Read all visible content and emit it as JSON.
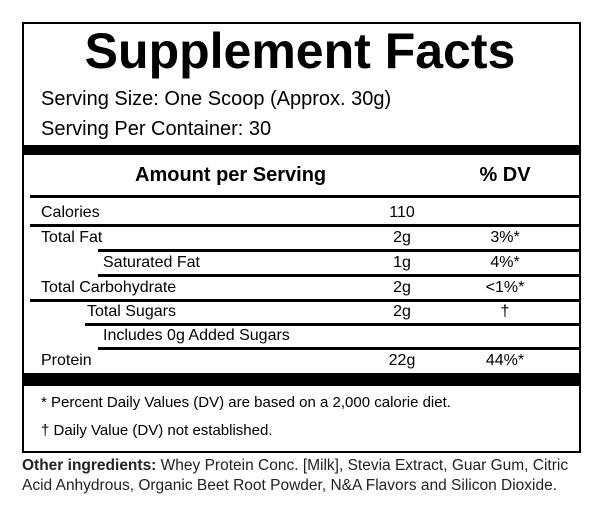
{
  "header": {
    "title": "Supplement Facts",
    "serving_size": "Serving Size:  One Scoop (Approx. 30g)",
    "servings_per_container": "Serving Per Container: 30"
  },
  "table": {
    "headers": [
      "Amount per Serving",
      "% DV"
    ],
    "rows": [
      {
        "label": "Calories",
        "amount": "110"
      },
      {
        "label": "Total Fat",
        "amount": "2g",
        "dv": "3%*"
      },
      {
        "label": "Saturated Fat",
        "amount": "1g",
        "dv": "4%*"
      },
      {
        "label": "Total Carbohydrate",
        "amount": "2g",
        "dv": "<1%*"
      },
      {
        "label": "Total Sugars",
        "amount": "2g",
        "dv": "†"
      },
      {
        "label": "Includes 0g Added Sugars"
      },
      {
        "label": "Protein",
        "amount": "22g",
        "dv": "44%*"
      }
    ]
  },
  "footnotes": [
    "* Percent Daily Values (DV) are based on a 2,000 calorie diet.",
    "† Daily Value (DV) not established."
  ],
  "ingredients": {
    "label": "Other ingredients:",
    "text": "Whey Protein Conc. [Milk], Stevia Extract, Guar Gum, Citric Acid Anhydrous, Organic Beet Root Powder, N&A Flavors and Silicon Dioxide."
  }
}
